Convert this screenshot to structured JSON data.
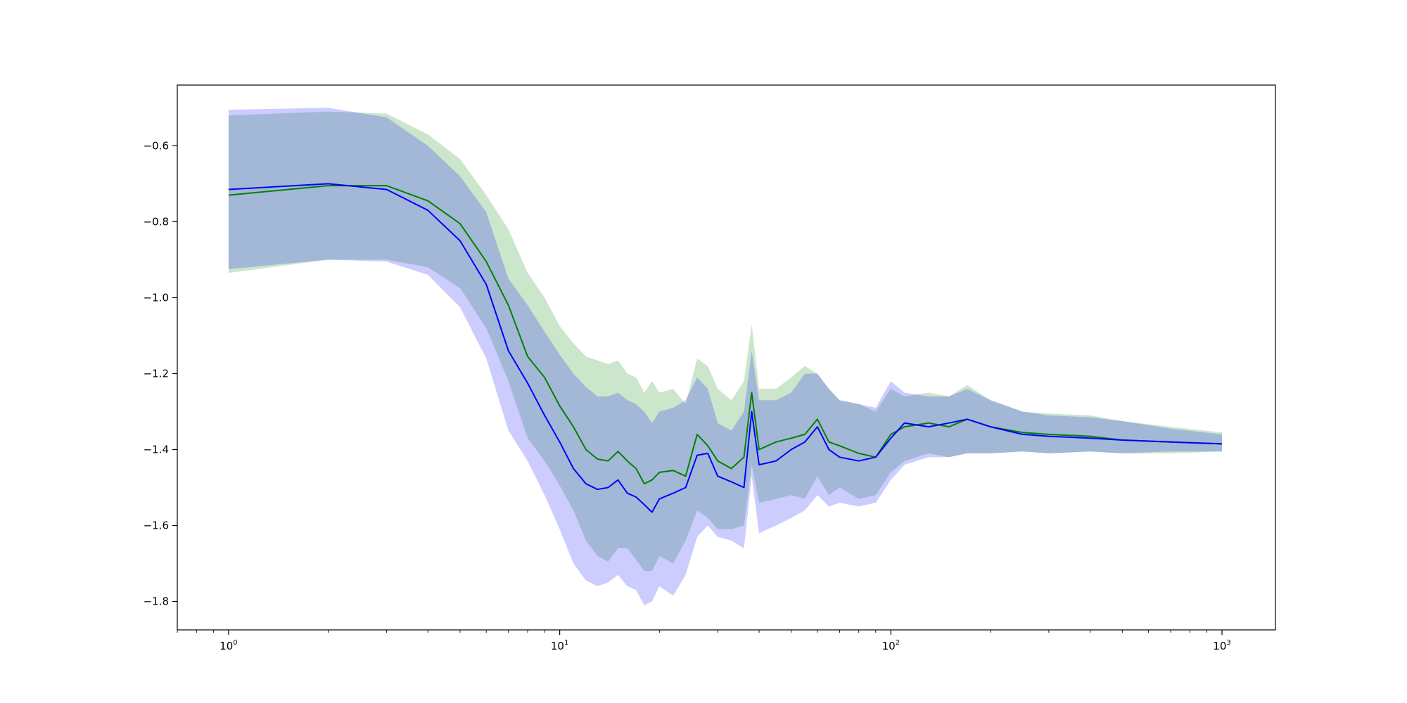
{
  "chart_data": {
    "type": "line",
    "title": "",
    "xlabel": "",
    "ylabel": "",
    "xscale": "log",
    "xlim": [
      0.7,
      1450
    ],
    "ylim": [
      -1.875,
      -0.44
    ],
    "grid": false,
    "legend": "none",
    "colors": {
      "green_line": "#008000",
      "green_band": "#008000",
      "blue_line": "#0000ff",
      "blue_band": "#0000ff",
      "axes": "#000000",
      "background": "#ffffff"
    },
    "xticks": [
      {
        "value": 1,
        "base": "10",
        "exp": "0"
      },
      {
        "value": 10,
        "base": "10",
        "exp": "1"
      },
      {
        "value": 100,
        "base": "10",
        "exp": "2"
      },
      {
        "value": 1000,
        "base": "10",
        "exp": "3"
      }
    ],
    "yticks": [
      {
        "value": -0.6,
        "label": "−0.6"
      },
      {
        "value": -0.8,
        "label": "−0.8"
      },
      {
        "value": -1.0,
        "label": "−1.0"
      },
      {
        "value": -1.2,
        "label": "−1.2"
      },
      {
        "value": -1.4,
        "label": "−1.4"
      },
      {
        "value": -1.6,
        "label": "−1.6"
      },
      {
        "value": -1.8,
        "label": "−1.8"
      }
    ],
    "x": [
      1,
      2,
      3,
      4,
      5,
      6,
      7,
      8,
      9,
      10,
      11,
      12,
      13,
      14,
      15,
      16,
      17,
      18,
      19,
      20,
      22,
      24,
      26,
      28,
      30,
      33,
      36,
      38,
      40,
      45,
      50,
      55,
      60,
      65,
      70,
      80,
      90,
      100,
      110,
      130,
      150,
      170,
      200,
      250,
      300,
      400,
      500,
      700,
      1000
    ],
    "series": [
      {
        "line": [
          -0.73,
          -0.705,
          -0.705,
          -0.745,
          -0.805,
          -0.905,
          -1.02,
          -1.155,
          -1.21,
          -1.285,
          -1.34,
          -1.4,
          -1.425,
          -1.43,
          -1.405,
          -1.43,
          -1.45,
          -1.49,
          -1.48,
          -1.46,
          -1.455,
          -1.47,
          -1.36,
          -1.39,
          -1.43,
          -1.45,
          -1.42,
          -1.25,
          -1.4,
          -1.38,
          -1.37,
          -1.36,
          -1.32,
          -1.38,
          -1.39,
          -1.41,
          -1.42,
          -1.36,
          -1.34,
          -1.33,
          -1.34,
          -1.32,
          -1.34,
          -1.355,
          -1.36,
          -1.365,
          -1.375,
          -1.38,
          -1.385
        ],
        "upper": [
          -0.52,
          -0.51,
          -0.515,
          -0.57,
          -0.635,
          -0.73,
          -0.82,
          -0.935,
          -1.0,
          -1.075,
          -1.12,
          -1.155,
          -1.165,
          -1.175,
          -1.165,
          -1.2,
          -1.21,
          -1.25,
          -1.22,
          -1.25,
          -1.24,
          -1.28,
          -1.16,
          -1.18,
          -1.24,
          -1.27,
          -1.22,
          -1.07,
          -1.24,
          -1.24,
          -1.21,
          -1.18,
          -1.2,
          -1.24,
          -1.27,
          -1.28,
          -1.3,
          -1.24,
          -1.26,
          -1.25,
          -1.26,
          -1.23,
          -1.27,
          -1.3,
          -1.305,
          -1.31,
          -1.325,
          -1.34,
          -1.355
        ],
        "lower": [
          -0.935,
          -0.9,
          -0.9,
          -0.92,
          -0.975,
          -1.08,
          -1.22,
          -1.37,
          -1.43,
          -1.495,
          -1.56,
          -1.64,
          -1.68,
          -1.695,
          -1.66,
          -1.66,
          -1.69,
          -1.72,
          -1.72,
          -1.68,
          -1.7,
          -1.64,
          -1.56,
          -1.58,
          -1.61,
          -1.61,
          -1.6,
          -1.44,
          -1.54,
          -1.53,
          -1.52,
          -1.53,
          -1.47,
          -1.52,
          -1.5,
          -1.53,
          -1.52,
          -1.46,
          -1.43,
          -1.41,
          -1.42,
          -1.41,
          -1.41,
          -1.405,
          -1.41,
          -1.405,
          -1.41,
          -1.41,
          -1.405
        ]
      },
      {
        "line": [
          -0.715,
          -0.7,
          -0.715,
          -0.77,
          -0.85,
          -0.965,
          -1.14,
          -1.225,
          -1.31,
          -1.38,
          -1.45,
          -1.49,
          -1.505,
          -1.5,
          -1.48,
          -1.515,
          -1.525,
          -1.545,
          -1.565,
          -1.53,
          -1.515,
          -1.5,
          -1.415,
          -1.41,
          -1.47,
          -1.485,
          -1.5,
          -1.3,
          -1.44,
          -1.43,
          -1.4,
          -1.38,
          -1.34,
          -1.4,
          -1.42,
          -1.43,
          -1.42,
          -1.37,
          -1.33,
          -1.34,
          -1.33,
          -1.32,
          -1.34,
          -1.36,
          -1.365,
          -1.37,
          -1.375,
          -1.38,
          -1.385
        ],
        "upper": [
          -0.505,
          -0.5,
          -0.525,
          -0.6,
          -0.68,
          -0.775,
          -0.95,
          -1.02,
          -1.09,
          -1.15,
          -1.2,
          -1.235,
          -1.26,
          -1.26,
          -1.25,
          -1.27,
          -1.28,
          -1.3,
          -1.33,
          -1.3,
          -1.29,
          -1.27,
          -1.21,
          -1.24,
          -1.33,
          -1.35,
          -1.3,
          -1.14,
          -1.27,
          -1.27,
          -1.25,
          -1.2,
          -1.2,
          -1.24,
          -1.27,
          -1.28,
          -1.29,
          -1.22,
          -1.25,
          -1.26,
          -1.26,
          -1.24,
          -1.27,
          -1.3,
          -1.31,
          -1.315,
          -1.325,
          -1.345,
          -1.36
        ],
        "lower": [
          -0.925,
          -0.9,
          -0.905,
          -0.94,
          -1.025,
          -1.16,
          -1.35,
          -1.43,
          -1.52,
          -1.61,
          -1.7,
          -1.745,
          -1.76,
          -1.75,
          -1.73,
          -1.76,
          -1.77,
          -1.81,
          -1.8,
          -1.76,
          -1.785,
          -1.73,
          -1.63,
          -1.6,
          -1.63,
          -1.64,
          -1.66,
          -1.47,
          -1.62,
          -1.6,
          -1.58,
          -1.56,
          -1.52,
          -1.55,
          -1.54,
          -1.55,
          -1.54,
          -1.48,
          -1.44,
          -1.42,
          -1.42,
          -1.41,
          -1.41,
          -1.405,
          -1.41,
          -1.405,
          -1.41,
          -1.405,
          -1.405
        ]
      }
    ]
  }
}
